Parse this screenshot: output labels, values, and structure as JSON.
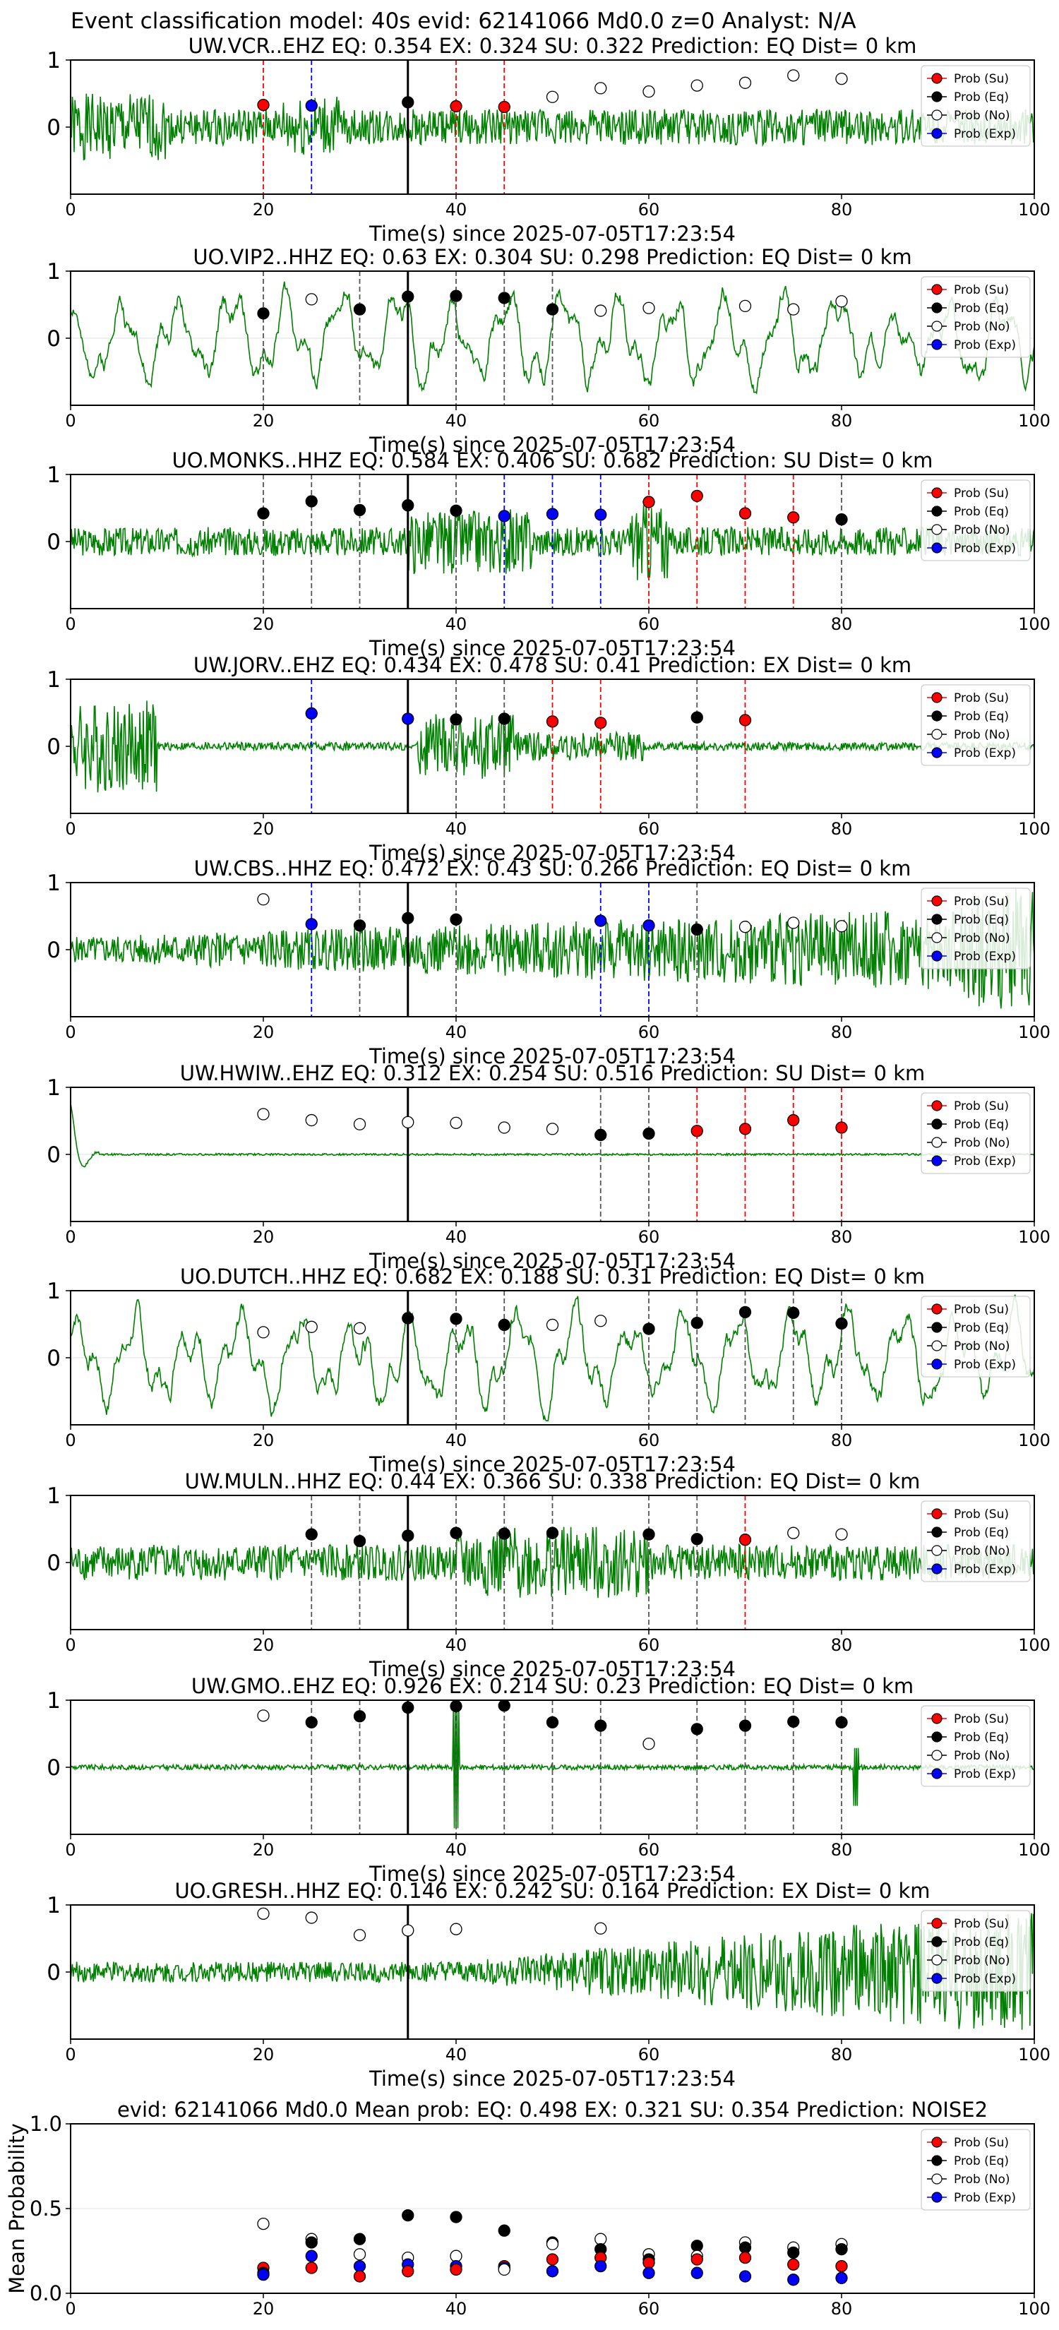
{
  "figure": {
    "suptitle": "Event classification model: 40s evid: 62141066 Md0.0 z=0 Analyst: N/A",
    "xlabel": "Time(s) since 2025-07-05T17:23:54",
    "xticks": [
      0,
      20,
      40,
      60,
      80,
      100
    ],
    "yticks_station": [
      0,
      1
    ],
    "yticks_mean": [
      "0.0",
      "0.5",
      "1.0"
    ],
    "colors": {
      "trace": "#008000",
      "su": "#ff0000",
      "eq": "#000000",
      "no": "#ffffff",
      "exp": "#0000ff"
    }
  },
  "legend": {
    "entries": [
      {
        "key": "su",
        "label": "Prob (Su)"
      },
      {
        "key": "eq",
        "label": "Prob (Eq)"
      },
      {
        "key": "no",
        "label": "Prob (No)"
      },
      {
        "key": "exp",
        "label": "Prob (Exp)"
      }
    ]
  },
  "chart_data": [
    {
      "type": "scatter",
      "title": "UW.VCR..EHZ   EQ: 0.354  EX: 0.324  SU: 0.322   Prediction: EQ    Dist= 0 km",
      "xlim": [
        0,
        100
      ],
      "ylim": [
        -1,
        1
      ],
      "pick_time": 35,
      "trace": {
        "amp": 0.4,
        "style": "mixed",
        "seed": 1
      },
      "points": [
        {
          "x": 20,
          "y": 0.33,
          "c": "su"
        },
        {
          "x": 25,
          "y": 0.32,
          "c": "exp"
        },
        {
          "x": 35,
          "y": 0.37,
          "c": "eq"
        },
        {
          "x": 40,
          "y": 0.31,
          "c": "su"
        },
        {
          "x": 45,
          "y": 0.3,
          "c": "su"
        },
        {
          "x": 50,
          "y": 0.45,
          "c": "no"
        },
        {
          "x": 55,
          "y": 0.58,
          "c": "no"
        },
        {
          "x": 60,
          "y": 0.53,
          "c": "no"
        },
        {
          "x": 65,
          "y": 0.62,
          "c": "no"
        },
        {
          "x": 70,
          "y": 0.66,
          "c": "no"
        },
        {
          "x": 75,
          "y": 0.77,
          "c": "no"
        },
        {
          "x": 80,
          "y": 0.72,
          "c": "no"
        }
      ]
    },
    {
      "type": "scatter",
      "title": "UO.VIP2..HHZ   EQ: 0.63  EX: 0.304  SU: 0.298   Prediction: EQ    Dist= 0 km",
      "xlim": [
        0,
        100
      ],
      "ylim": [
        -1,
        1
      ],
      "pick_time": 35,
      "trace": {
        "amp": 0.6,
        "style": "wave",
        "seed": 2
      },
      "points": [
        {
          "x": 20,
          "y": 0.37,
          "c": "eq"
        },
        {
          "x": 25,
          "y": 0.58,
          "c": "no"
        },
        {
          "x": 30,
          "y": 0.43,
          "c": "eq"
        },
        {
          "x": 35,
          "y": 0.62,
          "c": "eq"
        },
        {
          "x": 40,
          "y": 0.63,
          "c": "eq"
        },
        {
          "x": 45,
          "y": 0.6,
          "c": "eq"
        },
        {
          "x": 50,
          "y": 0.43,
          "c": "eq"
        },
        {
          "x": 55,
          "y": 0.41,
          "c": "no"
        },
        {
          "x": 60,
          "y": 0.45,
          "c": "no"
        },
        {
          "x": 70,
          "y": 0.48,
          "c": "no"
        },
        {
          "x": 75,
          "y": 0.43,
          "c": "no"
        },
        {
          "x": 80,
          "y": 0.55,
          "c": "no"
        }
      ]
    },
    {
      "type": "scatter",
      "title": "UO.MONKS..HHZ   EQ: 0.584  EX: 0.406  SU: 0.682   Prediction: SU    Dist= 0 km",
      "xlim": [
        0,
        100
      ],
      "ylim": [
        -1,
        1
      ],
      "pick_time": 35,
      "trace": {
        "amp": 0.3,
        "style": "noise",
        "seed": 3
      },
      "points": [
        {
          "x": 20,
          "y": 0.42,
          "c": "eq"
        },
        {
          "x": 25,
          "y": 0.6,
          "c": "eq"
        },
        {
          "x": 30,
          "y": 0.47,
          "c": "eq"
        },
        {
          "x": 35,
          "y": 0.54,
          "c": "eq"
        },
        {
          "x": 40,
          "y": 0.46,
          "c": "eq"
        },
        {
          "x": 45,
          "y": 0.38,
          "c": "exp"
        },
        {
          "x": 50,
          "y": 0.41,
          "c": "exp"
        },
        {
          "x": 55,
          "y": 0.4,
          "c": "exp"
        },
        {
          "x": 60,
          "y": 0.59,
          "c": "su"
        },
        {
          "x": 65,
          "y": 0.68,
          "c": "su"
        },
        {
          "x": 70,
          "y": 0.42,
          "c": "su"
        },
        {
          "x": 75,
          "y": 0.36,
          "c": "su"
        },
        {
          "x": 80,
          "y": 0.33,
          "c": "eq"
        }
      ]
    },
    {
      "type": "scatter",
      "title": "UW.JORV..EHZ   EQ: 0.434  EX: 0.478  SU: 0.41   Prediction: EX    Dist= 0 km",
      "xlim": [
        0,
        100
      ],
      "ylim": [
        -1,
        1
      ],
      "pick_time": 35,
      "trace": {
        "amp": 0.15,
        "style": "burst",
        "seed": 4
      },
      "points": [
        {
          "x": 25,
          "y": 0.49,
          "c": "exp"
        },
        {
          "x": 35,
          "y": 0.41,
          "c": "exp"
        },
        {
          "x": 40,
          "y": 0.4,
          "c": "eq"
        },
        {
          "x": 45,
          "y": 0.41,
          "c": "eq"
        },
        {
          "x": 50,
          "y": 0.37,
          "c": "su"
        },
        {
          "x": 55,
          "y": 0.35,
          "c": "su"
        },
        {
          "x": 65,
          "y": 0.43,
          "c": "eq"
        },
        {
          "x": 70,
          "y": 0.39,
          "c": "su"
        }
      ]
    },
    {
      "type": "scatter",
      "title": "UW.CBS..HHZ   EQ: 0.472  EX: 0.43  SU: 0.266   Prediction: EQ    Dist= 0 km",
      "xlim": [
        0,
        100
      ],
      "ylim": [
        -1,
        1
      ],
      "pick_time": 35,
      "trace": {
        "amp": 0.3,
        "style": "grow",
        "seed": 5
      },
      "points": [
        {
          "x": 20,
          "y": 0.75,
          "c": "no"
        },
        {
          "x": 25,
          "y": 0.38,
          "c": "exp"
        },
        {
          "x": 30,
          "y": 0.36,
          "c": "eq"
        },
        {
          "x": 35,
          "y": 0.47,
          "c": "eq"
        },
        {
          "x": 40,
          "y": 0.45,
          "c": "eq"
        },
        {
          "x": 55,
          "y": 0.43,
          "c": "exp"
        },
        {
          "x": 60,
          "y": 0.36,
          "c": "exp"
        },
        {
          "x": 65,
          "y": 0.3,
          "c": "eq"
        },
        {
          "x": 70,
          "y": 0.34,
          "c": "no"
        },
        {
          "x": 75,
          "y": 0.4,
          "c": "no"
        },
        {
          "x": 80,
          "y": 0.35,
          "c": "no"
        }
      ]
    },
    {
      "type": "scatter",
      "title": "UW.HWIW..EHZ   EQ: 0.312  EX: 0.254  SU: 0.516   Prediction: SU    Dist= 0 km",
      "xlim": [
        0,
        100
      ],
      "ylim": [
        -1,
        1
      ],
      "pick_time": 35,
      "trace": {
        "amp": 0.03,
        "style": "decay",
        "seed": 6
      },
      "points": [
        {
          "x": 20,
          "y": 0.6,
          "c": "no"
        },
        {
          "x": 25,
          "y": 0.51,
          "c": "no"
        },
        {
          "x": 30,
          "y": 0.45,
          "c": "no"
        },
        {
          "x": 35,
          "y": 0.48,
          "c": "no"
        },
        {
          "x": 40,
          "y": 0.47,
          "c": "no"
        },
        {
          "x": 45,
          "y": 0.4,
          "c": "no"
        },
        {
          "x": 50,
          "y": 0.38,
          "c": "no"
        },
        {
          "x": 55,
          "y": 0.29,
          "c": "eq"
        },
        {
          "x": 60,
          "y": 0.31,
          "c": "eq"
        },
        {
          "x": 65,
          "y": 0.35,
          "c": "su"
        },
        {
          "x": 70,
          "y": 0.38,
          "c": "su"
        },
        {
          "x": 75,
          "y": 0.51,
          "c": "su"
        },
        {
          "x": 80,
          "y": 0.4,
          "c": "su"
        }
      ]
    },
    {
      "type": "scatter",
      "title": "UO.DUTCH..HHZ   EQ: 0.682  EX: 0.188  SU: 0.31   Prediction: EQ    Dist= 0 km",
      "xlim": [
        0,
        100
      ],
      "ylim": [
        -1,
        1
      ],
      "pick_time": 35,
      "trace": {
        "amp": 0.25,
        "style": "wave",
        "seed": 7
      },
      "points": [
        {
          "x": 20,
          "y": 0.38,
          "c": "no"
        },
        {
          "x": 25,
          "y": 0.46,
          "c": "no"
        },
        {
          "x": 30,
          "y": 0.44,
          "c": "no"
        },
        {
          "x": 35,
          "y": 0.59,
          "c": "eq"
        },
        {
          "x": 40,
          "y": 0.58,
          "c": "eq"
        },
        {
          "x": 45,
          "y": 0.49,
          "c": "eq"
        },
        {
          "x": 50,
          "y": 0.49,
          "c": "no"
        },
        {
          "x": 55,
          "y": 0.55,
          "c": "no"
        },
        {
          "x": 60,
          "y": 0.43,
          "c": "eq"
        },
        {
          "x": 65,
          "y": 0.52,
          "c": "eq"
        },
        {
          "x": 70,
          "y": 0.68,
          "c": "eq"
        },
        {
          "x": 75,
          "y": 0.67,
          "c": "eq"
        },
        {
          "x": 80,
          "y": 0.51,
          "c": "eq"
        }
      ]
    },
    {
      "type": "scatter",
      "title": "UW.MULN..HHZ   EQ: 0.44  EX: 0.366  SU: 0.338   Prediction: EQ    Dist= 0 km",
      "xlim": [
        0,
        100
      ],
      "ylim": [
        -1,
        1
      ],
      "pick_time": 35,
      "trace": {
        "amp": 0.25,
        "style": "noisy",
        "seed": 8
      },
      "points": [
        {
          "x": 25,
          "y": 0.42,
          "c": "eq"
        },
        {
          "x": 30,
          "y": 0.32,
          "c": "eq"
        },
        {
          "x": 35,
          "y": 0.4,
          "c": "eq"
        },
        {
          "x": 40,
          "y": 0.44,
          "c": "eq"
        },
        {
          "x": 45,
          "y": 0.43,
          "c": "eq"
        },
        {
          "x": 50,
          "y": 0.44,
          "c": "eq"
        },
        {
          "x": 60,
          "y": 0.42,
          "c": "eq"
        },
        {
          "x": 65,
          "y": 0.35,
          "c": "eq"
        },
        {
          "x": 70,
          "y": 0.34,
          "c": "su"
        },
        {
          "x": 75,
          "y": 0.44,
          "c": "no"
        },
        {
          "x": 80,
          "y": 0.42,
          "c": "no"
        }
      ]
    },
    {
      "type": "scatter",
      "title": "UW.GMO..EHZ   EQ: 0.926  EX: 0.214  SU: 0.23   Prediction: EQ    Dist= 0 km",
      "xlim": [
        0,
        100
      ],
      "ylim": [
        -1,
        1
      ],
      "pick_time": 35,
      "trace": {
        "amp": 0.05,
        "style": "quiet",
        "seed": 9
      },
      "points": [
        {
          "x": 20,
          "y": 0.77,
          "c": "no"
        },
        {
          "x": 25,
          "y": 0.67,
          "c": "eq"
        },
        {
          "x": 30,
          "y": 0.76,
          "c": "eq"
        },
        {
          "x": 35,
          "y": 0.89,
          "c": "eq"
        },
        {
          "x": 40,
          "y": 0.91,
          "c": "eq"
        },
        {
          "x": 45,
          "y": 0.92,
          "c": "eq"
        },
        {
          "x": 50,
          "y": 0.67,
          "c": "eq"
        },
        {
          "x": 55,
          "y": 0.62,
          "c": "eq"
        },
        {
          "x": 60,
          "y": 0.35,
          "c": "no"
        },
        {
          "x": 65,
          "y": 0.57,
          "c": "eq"
        },
        {
          "x": 70,
          "y": 0.62,
          "c": "eq"
        },
        {
          "x": 75,
          "y": 0.68,
          "c": "eq"
        },
        {
          "x": 80,
          "y": 0.67,
          "c": "eq"
        }
      ]
    },
    {
      "type": "scatter",
      "title": "UO.GRESH..HHZ   EQ: 0.146  EX: 0.242  SU: 0.164   Prediction: EX    Dist= 0 km",
      "xlim": [
        0,
        100
      ],
      "ylim": [
        -1,
        1
      ],
      "pick_time": 35,
      "trace": {
        "amp": 0.3,
        "style": "ramp",
        "seed": 10
      },
      "points": [
        {
          "x": 20,
          "y": 0.87,
          "c": "no"
        },
        {
          "x": 25,
          "y": 0.81,
          "c": "no"
        },
        {
          "x": 30,
          "y": 0.55,
          "c": "no"
        },
        {
          "x": 35,
          "y": 0.62,
          "c": "no"
        },
        {
          "x": 40,
          "y": 0.64,
          "c": "no"
        },
        {
          "x": 55,
          "y": 0.65,
          "c": "no"
        }
      ]
    },
    {
      "type": "scatter",
      "title": "evid: 62141066  Md0.0   Mean prob:   EQ: 0.498  EX: 0.321  SU: 0.354   Prediction: NOISE2",
      "ylabel": "Mean Probability",
      "xlim": [
        0,
        100
      ],
      "ylim": [
        0,
        1
      ],
      "points": [
        {
          "x": 20,
          "y": 0.41,
          "c": "no"
        },
        {
          "x": 20,
          "y": 0.15,
          "c": "su"
        },
        {
          "x": 20,
          "y": 0.12,
          "c": "eq"
        },
        {
          "x": 20,
          "y": 0.11,
          "c": "exp"
        },
        {
          "x": 25,
          "y": 0.32,
          "c": "no"
        },
        {
          "x": 25,
          "y": 0.3,
          "c": "eq"
        },
        {
          "x": 25,
          "y": 0.22,
          "c": "exp"
        },
        {
          "x": 25,
          "y": 0.15,
          "c": "su"
        },
        {
          "x": 30,
          "y": 0.32,
          "c": "eq"
        },
        {
          "x": 30,
          "y": 0.23,
          "c": "no"
        },
        {
          "x": 30,
          "y": 0.16,
          "c": "exp"
        },
        {
          "x": 30,
          "y": 0.1,
          "c": "su"
        },
        {
          "x": 35,
          "y": 0.46,
          "c": "eq"
        },
        {
          "x": 35,
          "y": 0.21,
          "c": "no"
        },
        {
          "x": 35,
          "y": 0.17,
          "c": "exp"
        },
        {
          "x": 35,
          "y": 0.13,
          "c": "su"
        },
        {
          "x": 40,
          "y": 0.45,
          "c": "eq"
        },
        {
          "x": 40,
          "y": 0.22,
          "c": "no"
        },
        {
          "x": 40,
          "y": 0.16,
          "c": "exp"
        },
        {
          "x": 40,
          "y": 0.14,
          "c": "su"
        },
        {
          "x": 45,
          "y": 0.37,
          "c": "eq"
        },
        {
          "x": 45,
          "y": 0.16,
          "c": "su"
        },
        {
          "x": 45,
          "y": 0.15,
          "c": "exp"
        },
        {
          "x": 45,
          "y": 0.14,
          "c": "no"
        },
        {
          "x": 50,
          "y": 0.3,
          "c": "eq"
        },
        {
          "x": 50,
          "y": 0.29,
          "c": "no"
        },
        {
          "x": 50,
          "y": 0.2,
          "c": "su"
        },
        {
          "x": 50,
          "y": 0.13,
          "c": "exp"
        },
        {
          "x": 55,
          "y": 0.32,
          "c": "no"
        },
        {
          "x": 55,
          "y": 0.26,
          "c": "eq"
        },
        {
          "x": 55,
          "y": 0.21,
          "c": "su"
        },
        {
          "x": 55,
          "y": 0.16,
          "c": "exp"
        },
        {
          "x": 60,
          "y": 0.23,
          "c": "no"
        },
        {
          "x": 60,
          "y": 0.2,
          "c": "eq"
        },
        {
          "x": 60,
          "y": 0.18,
          "c": "su"
        },
        {
          "x": 60,
          "y": 0.12,
          "c": "exp"
        },
        {
          "x": 65,
          "y": 0.28,
          "c": "eq"
        },
        {
          "x": 65,
          "y": 0.22,
          "c": "no"
        },
        {
          "x": 65,
          "y": 0.2,
          "c": "su"
        },
        {
          "x": 65,
          "y": 0.12,
          "c": "exp"
        },
        {
          "x": 70,
          "y": 0.3,
          "c": "no"
        },
        {
          "x": 70,
          "y": 0.27,
          "c": "eq"
        },
        {
          "x": 70,
          "y": 0.21,
          "c": "su"
        },
        {
          "x": 70,
          "y": 0.1,
          "c": "exp"
        },
        {
          "x": 75,
          "y": 0.27,
          "c": "no"
        },
        {
          "x": 75,
          "y": 0.24,
          "c": "eq"
        },
        {
          "x": 75,
          "y": 0.17,
          "c": "su"
        },
        {
          "x": 75,
          "y": 0.08,
          "c": "exp"
        },
        {
          "x": 80,
          "y": 0.29,
          "c": "no"
        },
        {
          "x": 80,
          "y": 0.26,
          "c": "eq"
        },
        {
          "x": 80,
          "y": 0.16,
          "c": "su"
        },
        {
          "x": 80,
          "y": 0.09,
          "c": "exp"
        }
      ]
    }
  ]
}
